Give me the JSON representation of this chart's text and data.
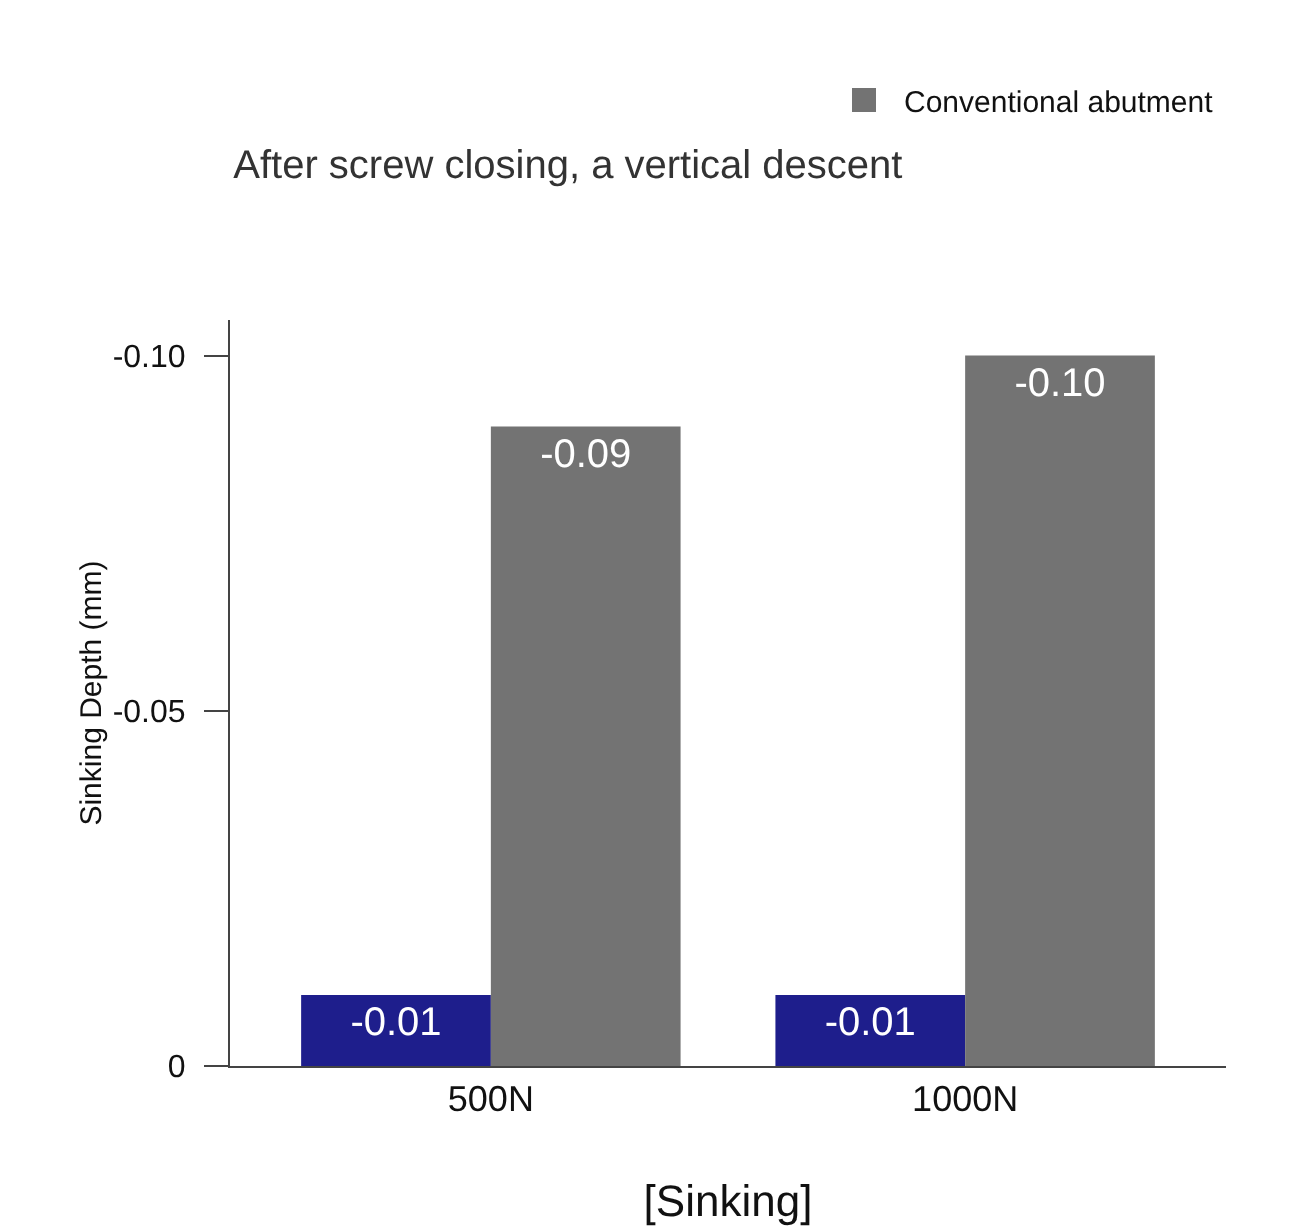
{
  "chart_data": {
    "type": "bar",
    "title": "After screw closing, a vertical descent",
    "xlabel": "[Sinking]",
    "ylabel": "Sinking Depth (mm)",
    "categories": [
      "500N",
      "1000N"
    ],
    "series": [
      {
        "color": "#1e1e8c",
        "values": [
          -0.01,
          -0.01
        ],
        "value_labels": [
          "-0.01",
          "-0.01"
        ]
      },
      {
        "name": "Conventional abutment",
        "color": "#737373",
        "values": [
          -0.09,
          -0.1
        ],
        "value_labels": [
          "-0.09",
          "-0.10"
        ]
      }
    ],
    "ylim": [
      0,
      -0.105
    ],
    "yticks": [
      {
        "value": -0.1,
        "label": "-0.10"
      },
      {
        "value": -0.05,
        "label": "-0.05"
      },
      0
    ],
    "grid": false,
    "legend": "top right"
  }
}
